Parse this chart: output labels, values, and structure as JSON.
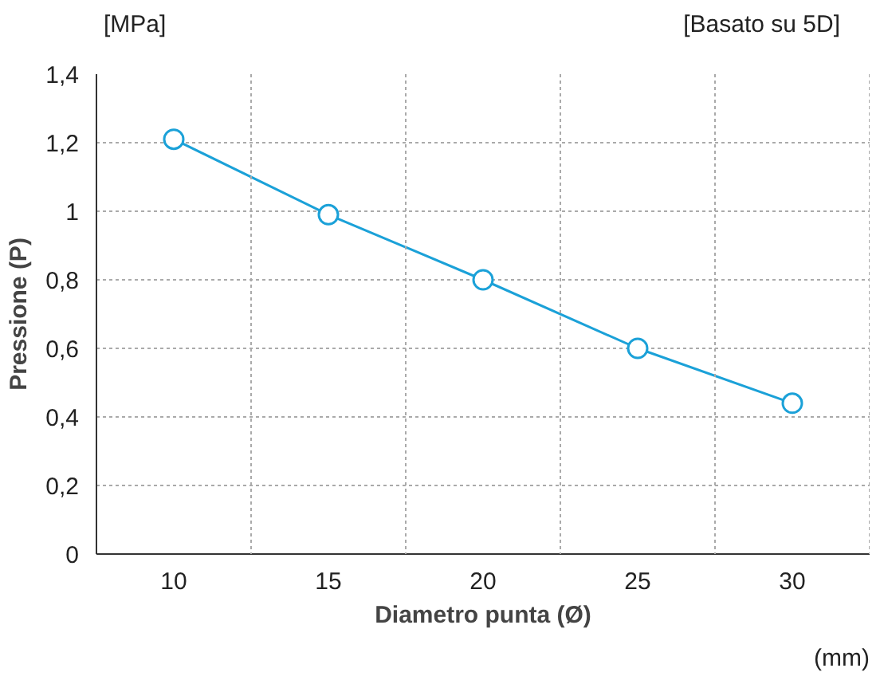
{
  "chart_data": {
    "type": "line",
    "xlabel": "Diametro punta (Ø)",
    "ylabel": "Pressione (P)",
    "annotations": [
      "[MPa]",
      "[Basato su 5D]",
      "(mm)"
    ],
    "categories": [
      "10",
      "15",
      "20",
      "25",
      "30"
    ],
    "series": [
      {
        "color": "#1ba1d8",
        "values": [
          1.21,
          0.99,
          0.8,
          0.6,
          0.44
        ]
      }
    ],
    "ylim": [
      0,
      1.4
    ],
    "yticks": [
      0,
      {
        "value": 0.2,
        "label": "0,2"
      },
      {
        "value": 0.4,
        "label": "0,4"
      },
      {
        "value": 0.6,
        "label": "0,6"
      },
      {
        "value": 0.8,
        "label": "0,8"
      },
      1,
      {
        "value": 1.2,
        "label": "1,2"
      },
      {
        "value": 1.4,
        "label": "1,4"
      }
    ],
    "grid": true,
    "marker": "circle",
    "line_style": "solid"
  }
}
